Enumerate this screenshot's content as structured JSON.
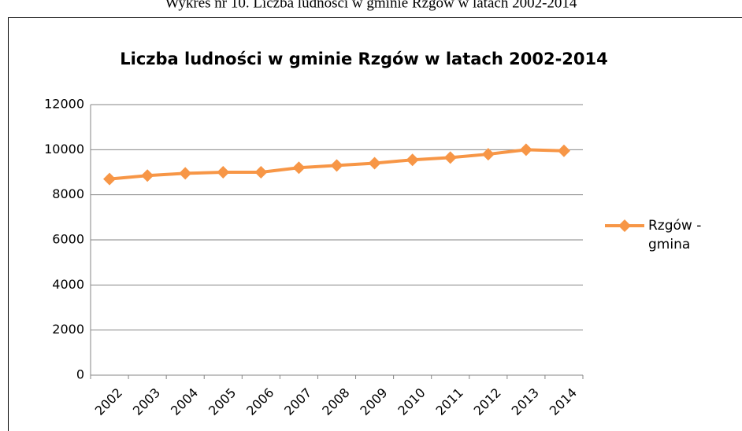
{
  "caption": "Wykres  nr 10. Liczba ludności w gminie Rzgów w latach 2002-2014",
  "chart_data": {
    "type": "line",
    "title": "Liczba ludności  w gminie Rzgów w latach 2002-2014",
    "categories": [
      "2002",
      "2003",
      "2004",
      "2005",
      "2006",
      "2007",
      "2008",
      "2009",
      "2010",
      "2011",
      "2012",
      "2013",
      "2014"
    ],
    "series": [
      {
        "name": "Rzgów - gmina",
        "color": "#f79646",
        "values": [
          8700,
          8850,
          8950,
          9000,
          9000,
          9200,
          9300,
          9400,
          9550,
          9650,
          9800,
          10000,
          9950
        ]
      }
    ],
    "ylim": [
      0,
      12000
    ],
    "yticks": [
      0,
      2000,
      4000,
      6000,
      8000,
      10000,
      12000
    ],
    "grid": true,
    "legend": "right"
  }
}
